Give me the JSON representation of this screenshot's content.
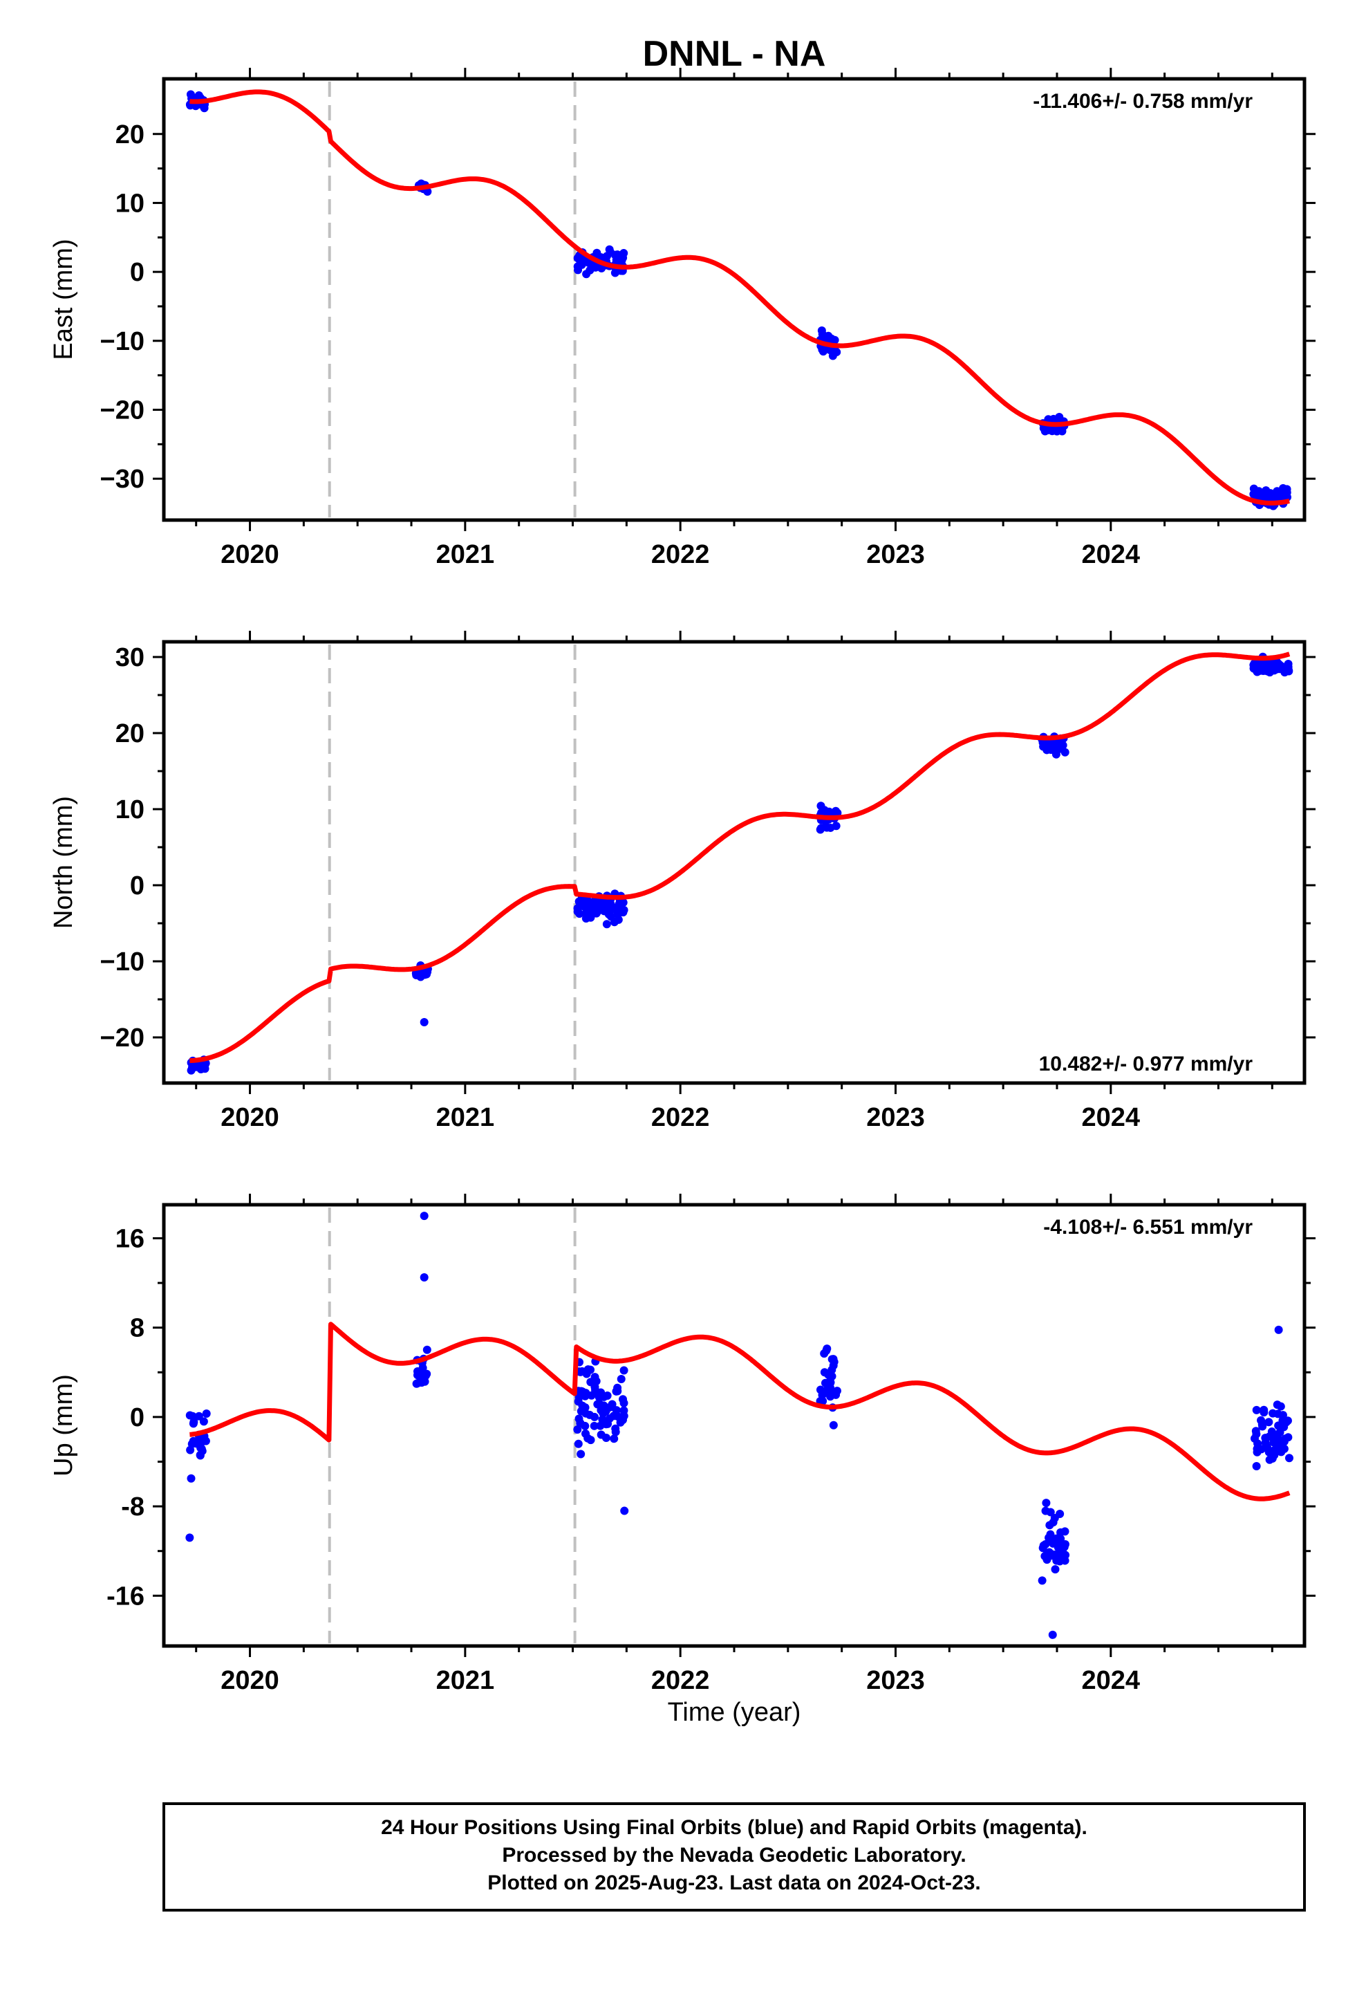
{
  "title": "DNNL - NA",
  "x_axis_label": "Time (year)",
  "colors": {
    "data_points": "#0000ff",
    "model_line": "#ff0000",
    "event_lines": "#c0c0c0",
    "frame": "#000000"
  },
  "footer": {
    "line1": "24 Hour Positions Using Final Orbits (blue) and Rapid Orbits (magenta).",
    "line2": "Processed by the Nevada Geodetic Laboratory.",
    "line3": "Plotted on 2025-Aug-23. Last data on 2024-Oct-23."
  },
  "chart_data": [
    {
      "type": "scatter",
      "name": "east",
      "ylabel": "East (mm)",
      "rate_text": "-11.406+/- 0.758 mm/yr",
      "rate_position": "top-right",
      "xlim": [
        2019.6,
        2024.9
      ],
      "ylim": [
        -36,
        28
      ],
      "x_ticks": [
        2020,
        2021,
        2022,
        2023,
        2024
      ],
      "x_tick_labels": [
        "2020",
        "2021",
        "2022",
        "2023",
        "2024"
      ],
      "y_ticks": [
        20,
        10,
        0,
        -10,
        -20,
        -30
      ],
      "y_tick_labels": [
        "20",
        "10",
        "0",
        "−10",
        "−20",
        "−30"
      ],
      "event_lines_x": [
        2020.37,
        2021.51
      ],
      "model": {
        "start_value": 24.7,
        "rate": -11.406,
        "start_year": 2019.75,
        "seasonal": {
          "sin": 2.3,
          "cos": 1.9
        },
        "offsets": [
          {
            "x": 2020.37,
            "value": -1.2
          }
        ]
      },
      "clusters": [
        {
          "x_range": [
            2019.72,
            2019.79
          ],
          "center": 24.6,
          "spread": 1.6,
          "count": 22
        },
        {
          "x_range": [
            2020.77,
            2020.83
          ],
          "center": 12.3,
          "spread": 1.1,
          "count": 14
        },
        {
          "x_range": [
            2021.52,
            2021.74
          ],
          "center": 1.5,
          "spread": 2.6,
          "count": 70
        },
        {
          "x_range": [
            2022.65,
            2022.73
          ],
          "center": -10.2,
          "spread": 2.4,
          "count": 24
        },
        {
          "x_range": [
            2023.68,
            2023.79
          ],
          "center": -22.0,
          "spread": 1.8,
          "count": 36
        },
        {
          "x_range": [
            2024.66,
            2024.83
          ],
          "center": -32.7,
          "spread": 1.8,
          "count": 55
        }
      ]
    },
    {
      "type": "scatter",
      "name": "north",
      "ylabel": "North (mm)",
      "rate_text": "10.482+/- 0.977 mm/yr",
      "rate_position": "bottom-right",
      "xlim": [
        2019.6,
        2024.9
      ],
      "ylim": [
        -26,
        32
      ],
      "x_ticks": [
        2020,
        2021,
        2022,
        2023,
        2024
      ],
      "x_tick_labels": [
        "2020",
        "2021",
        "2022",
        "2023",
        "2024"
      ],
      "y_ticks": [
        30,
        20,
        10,
        0,
        -10,
        -20
      ],
      "y_tick_labels": [
        "30",
        "20",
        "10",
        "0",
        "−10",
        "−20"
      ],
      "event_lines_x": [
        2020.37,
        2021.51
      ],
      "model": {
        "start_value": -23.0,
        "rate": 10.482,
        "start_year": 2019.75,
        "seasonal": {
          "sin": 1.8,
          "cos": -1.2
        },
        "offsets": [
          {
            "x": 2020.37,
            "value": 1.5
          },
          {
            "x": 2021.51,
            "value": -1.0
          }
        ]
      },
      "clusters": [
        {
          "x_range": [
            2019.72,
            2019.8
          ],
          "center": -23.8,
          "spread": 1.2,
          "count": 20
        },
        {
          "x_range": [
            2020.77,
            2020.83
          ],
          "center": -11.5,
          "spread": 1.3,
          "count": 14
        },
        {
          "x_range": [
            2021.52,
            2021.74
          ],
          "center": -2.8,
          "spread": 2.6,
          "count": 70
        },
        {
          "x_range": [
            2022.65,
            2022.73
          ],
          "center": 8.5,
          "spread": 2.2,
          "count": 24
        },
        {
          "x_range": [
            2023.68,
            2023.79
          ],
          "center": 18.5,
          "spread": 2.0,
          "count": 36
        },
        {
          "x_range": [
            2024.66,
            2024.83
          ],
          "center": 28.8,
          "spread": 1.5,
          "count": 55
        }
      ],
      "outliers": [
        {
          "x": 2020.81,
          "y": -18.0
        }
      ]
    },
    {
      "type": "scatter",
      "name": "up",
      "ylabel": "Up (mm)",
      "rate_text": "-4.108+/- 6.551 mm/yr",
      "rate_position": "top-right",
      "xlim": [
        2019.6,
        2024.9
      ],
      "ylim": [
        -20.5,
        19.0
      ],
      "x_ticks": [
        2020,
        2021,
        2022,
        2023,
        2024
      ],
      "x_tick_labels": [
        "2020",
        "2021",
        "2022",
        "2023",
        "2024"
      ],
      "y_ticks": [
        16,
        8,
        0,
        -8,
        -16
      ],
      "y_tick_labels": [
        "16",
        "8",
        "0",
        "-8",
        "-16"
      ],
      "event_lines_x": [
        2020.37,
        2021.51
      ],
      "model": {
        "start_value": -1.5,
        "rate": -4.108,
        "start_year": 2019.75,
        "seasonal": {
          "sin": 1.6,
          "cos": 1.2
        },
        "offsets": [
          {
            "x": 2020.37,
            "value": 10.5
          },
          {
            "x": 2021.51,
            "value": 4.3
          }
        ]
      },
      "clusters": [
        {
          "x_range": [
            2019.72,
            2019.8
          ],
          "center": -2.2,
          "spread": 4.0,
          "count": 22
        },
        {
          "x_range": [
            2020.77,
            2020.83
          ],
          "center": 4.2,
          "spread": 3.4,
          "count": 16
        },
        {
          "x_range": [
            2021.52,
            2021.74
          ],
          "center": 1.0,
          "spread": 5.2,
          "count": 80
        },
        {
          "x_range": [
            2022.65,
            2022.73
          ],
          "center": 2.5,
          "spread": 4.6,
          "count": 28
        },
        {
          "x_range": [
            2023.68,
            2023.79
          ],
          "center": -11.5,
          "spread": 4.6,
          "count": 40
        },
        {
          "x_range": [
            2024.66,
            2024.83
          ],
          "center": -1.8,
          "spread": 3.6,
          "count": 60
        }
      ],
      "outliers": [
        {
          "x": 2019.72,
          "y": -10.8
        },
        {
          "x": 2020.81,
          "y": 18.0
        },
        {
          "x": 2020.81,
          "y": 12.5
        },
        {
          "x": 2021.74,
          "y": -8.4
        },
        {
          "x": 2023.73,
          "y": -19.5
        },
        {
          "x": 2024.78,
          "y": 7.8
        }
      ]
    }
  ]
}
